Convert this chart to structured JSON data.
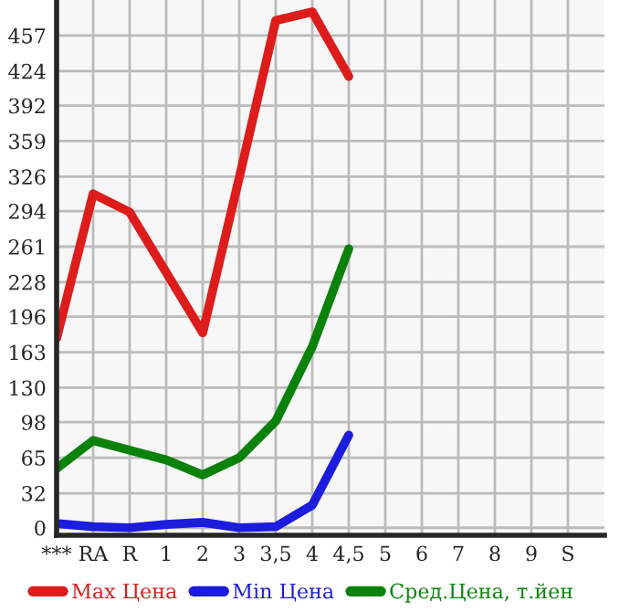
{
  "chart_data": {
    "type": "line",
    "categories": [
      "***",
      "RA",
      "R",
      "1",
      "2",
      "3",
      "3,5",
      "4",
      "4,5",
      "5",
      "6",
      "7",
      "8",
      "9",
      "S"
    ],
    "series": [
      {
        "name": "Max Цена",
        "color": "#dd1c1c",
        "values": [
          176,
          310,
          293,
          237,
          181,
          325,
          471,
          479,
          419,
          null,
          null,
          null,
          null,
          null,
          null
        ]
      },
      {
        "name": "Min Цена",
        "color": "#1c1cdd",
        "values": [
          4,
          1,
          0,
          3,
          5,
          0,
          1,
          21,
          86,
          null,
          null,
          null,
          null,
          null,
          null
        ]
      },
      {
        "name": "Сред.Цена, т.йен",
        "color": "#0a820a",
        "values": [
          55,
          81,
          72,
          63,
          49,
          65,
          99,
          168,
          259,
          null,
          null,
          null,
          null,
          null,
          null
        ]
      }
    ],
    "ylim": [
      -7,
      490
    ],
    "yticks": [
      0,
      32,
      65,
      98,
      130,
      163,
      196,
      228,
      261,
      294,
      326,
      359,
      392,
      424,
      457
    ],
    "grid": true,
    "legend": "bottom",
    "marker": "none",
    "line_style": "solid"
  }
}
